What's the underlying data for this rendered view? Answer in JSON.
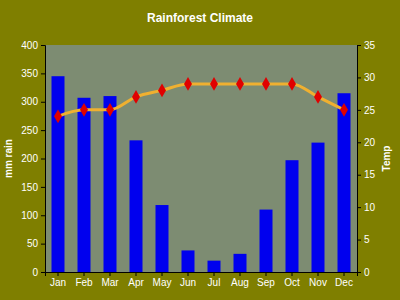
{
  "chart_data": {
    "type": "bar",
    "title": "Rainforest Climate",
    "categories": [
      "Jan",
      "Feb",
      "Mar",
      "Apr",
      "May",
      "Jun",
      "Jul",
      "Aug",
      "Sep",
      "Oct",
      "Nov",
      "Dec"
    ],
    "y_label": "mm rain",
    "y2_label": "Temp",
    "series": [
      {
        "type": "bar",
        "color": "#0000ee",
        "values": [
          345,
          307,
          310,
          232,
          118,
          38,
          20,
          32,
          110,
          197,
          228,
          315
        ]
      },
      {
        "type": "line",
        "axis": "y2",
        "color": "#f0b030",
        "marker": "diamond",
        "values": [
          24,
          25,
          25,
          27,
          28,
          29,
          29,
          29,
          29,
          29,
          27,
          25
        ]
      }
    ],
    "ylim": [
      0,
      400
    ],
    "yticks": [
      0,
      50,
      100,
      150,
      200,
      250,
      300,
      350,
      400
    ],
    "y2lim": [
      0,
      35
    ],
    "y2ticks": [
      0,
      5,
      10,
      15,
      20,
      25,
      30,
      35
    ],
    "grid": false
  }
}
